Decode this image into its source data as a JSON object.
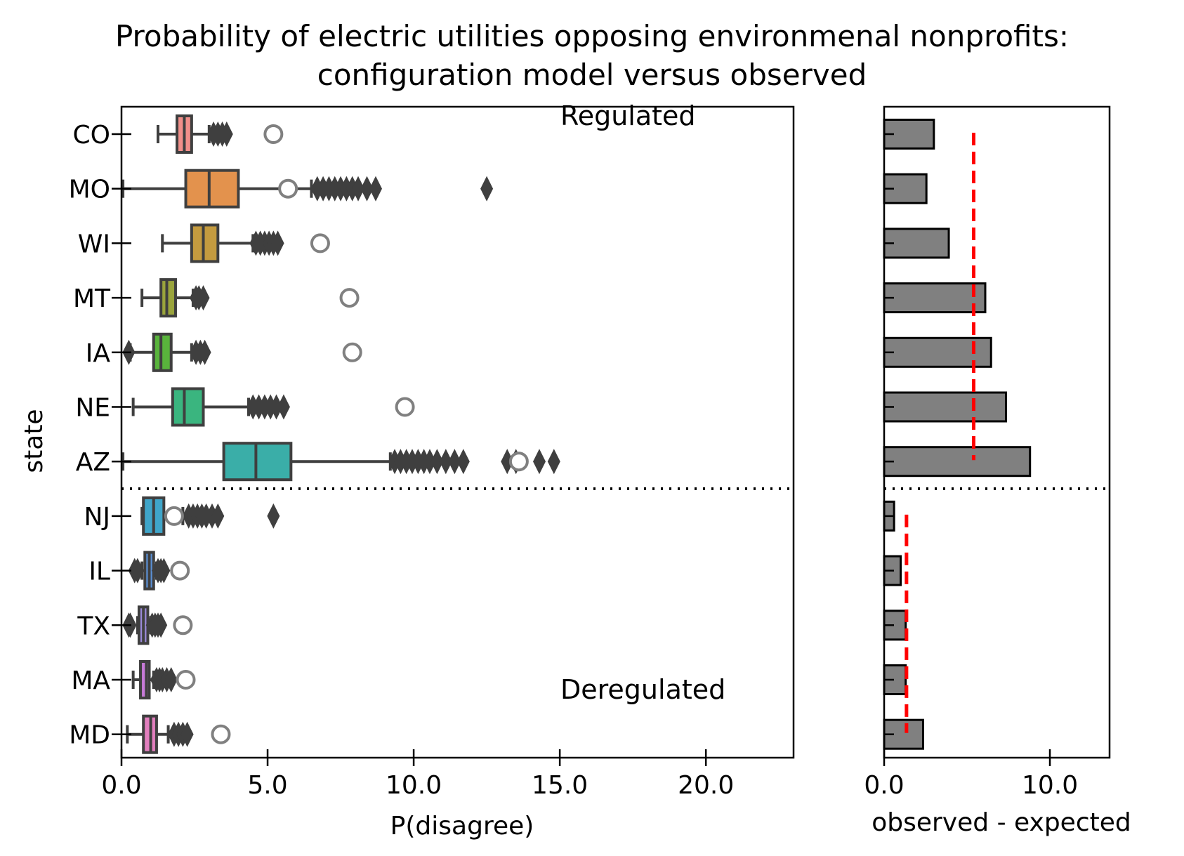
{
  "chart_data": [
    {
      "type": "boxplot",
      "orientation": "horizontal",
      "title": "Probability of electric utilities opposing environmenal nonprofits:\nconfiguration model versus observed",
      "xlabel": "P(disagree)",
      "ylabel": "state",
      "xlim": [
        0,
        23
      ],
      "xticks": [
        0,
        5,
        10,
        15,
        20
      ],
      "xtick_labels": [
        "0.0",
        "5.0",
        "10.0",
        "15.0",
        "20.0"
      ],
      "annotations": {
        "top": "Regulated",
        "bottom": "Deregulated"
      },
      "separator_after_index": 6,
      "states": [
        {
          "name": "CO",
          "color": "#f18f8a",
          "wlo": 1.25,
          "q1": 1.9,
          "med": 2.15,
          "q3": 2.4,
          "whi": 3.0,
          "outliers": [
            3.15,
            3.3,
            3.45,
            3.6
          ],
          "observed": 5.2
        },
        {
          "name": "MO",
          "color": "#e3924d",
          "wlo": 0.05,
          "q1": 2.2,
          "med": 3.0,
          "q3": 4.0,
          "whi": 6.5,
          "outliers": [
            6.7,
            6.9,
            7.1,
            7.3,
            7.5,
            7.7,
            7.9,
            8.1,
            8.4,
            8.7,
            12.5
          ],
          "observed": 5.7
        },
        {
          "name": "WI",
          "color": "#c49b3f",
          "wlo": 1.4,
          "q1": 2.4,
          "med": 2.8,
          "q3": 3.3,
          "whi": 4.5,
          "outliers": [
            4.6,
            4.75,
            4.9,
            5.05,
            5.2,
            5.35
          ],
          "observed": 6.8
        },
        {
          "name": "MT",
          "color": "#9aa43c",
          "wlo": 0.7,
          "q1": 1.35,
          "med": 1.55,
          "q3": 1.85,
          "whi": 2.45,
          "outliers": [
            2.55,
            2.65,
            2.8
          ],
          "observed": 7.8
        },
        {
          "name": "IA",
          "color": "#59b43c",
          "wlo": 0.3,
          "q1": 1.1,
          "med": 1.35,
          "q3": 1.7,
          "whi": 2.4,
          "outliers": [
            0.25,
            2.55,
            2.7,
            2.85
          ],
          "observed": 7.9
        },
        {
          "name": "NE",
          "color": "#3ab57f",
          "wlo": 0.4,
          "q1": 1.75,
          "med": 2.15,
          "q3": 2.8,
          "whi": 4.35,
          "outliers": [
            4.5,
            4.7,
            4.9,
            5.1,
            5.3,
            5.55
          ],
          "observed": 9.7
        },
        {
          "name": "AZ",
          "color": "#3aaea8",
          "wlo": 0.05,
          "q1": 3.5,
          "med": 4.6,
          "q3": 5.8,
          "whi": 9.2,
          "outliers": [
            9.35,
            9.55,
            9.75,
            9.95,
            10.15,
            10.35,
            10.55,
            10.8,
            11.1,
            11.4,
            11.7,
            13.2,
            13.5,
            14.3,
            14.8
          ],
          "observed": 13.6
        },
        {
          "name": "NJ",
          "color": "#3fa5c9",
          "wlo": 0.7,
          "q1": 0.75,
          "med": 1.1,
          "q3": 1.45,
          "whi": 2.1,
          "outliers": [
            2.3,
            2.45,
            2.6,
            2.75,
            2.9,
            3.1,
            3.3,
            5.2
          ],
          "observed": 1.8
        },
        {
          "name": "IL",
          "color": "#5b8fd3",
          "wlo": 0.7,
          "q1": 0.8,
          "med": 0.95,
          "q3": 1.1,
          "whi": 1.2,
          "outliers": [
            0.45,
            0.55,
            1.25,
            1.35,
            1.45
          ],
          "observed": 2.0
        },
        {
          "name": "TX",
          "color": "#9b8ad9",
          "wlo": 0.55,
          "q1": 0.6,
          "med": 0.75,
          "q3": 0.9,
          "whi": 1.0,
          "outliers": [
            0.25,
            0.3,
            1.05,
            1.15,
            1.25,
            1.35
          ],
          "observed": 2.1
        },
        {
          "name": "MA",
          "color": "#c77ad8",
          "wlo": 0.4,
          "q1": 0.65,
          "med": 0.85,
          "q3": 0.95,
          "whi": 1.1,
          "outliers": [
            1.2,
            1.3,
            1.4,
            1.55,
            1.7
          ],
          "observed": 2.2
        },
        {
          "name": "MD",
          "color": "#e27fbe",
          "wlo": 0.2,
          "q1": 0.75,
          "med": 1.0,
          "q3": 1.2,
          "whi": 1.6,
          "outliers": [
            1.8,
            1.95,
            2.1,
            2.25
          ],
          "observed": 3.4
        }
      ]
    },
    {
      "type": "bar",
      "orientation": "horizontal",
      "xlabel": "observed - expected",
      "xlim": [
        0,
        13.6
      ],
      "xticks": [
        0,
        10
      ],
      "xtick_labels": [
        "0.0",
        "10.0"
      ],
      "categories": [
        "CO",
        "MO",
        "WI",
        "MT",
        "IA",
        "NE",
        "AZ",
        "NJ",
        "IL",
        "TX",
        "MA",
        "MD"
      ],
      "values": [
        3.0,
        2.55,
        3.9,
        6.1,
        6.45,
        7.35,
        8.8,
        0.6,
        1.0,
        1.3,
        1.3,
        2.35
      ],
      "mean_lines": [
        {
          "group": "Regulated",
          "value": 5.4,
          "from_index": 0,
          "to_index": 6
        },
        {
          "group": "Deregulated",
          "value": 1.35,
          "from_index": 7,
          "to_index": 11
        }
      ]
    }
  ]
}
